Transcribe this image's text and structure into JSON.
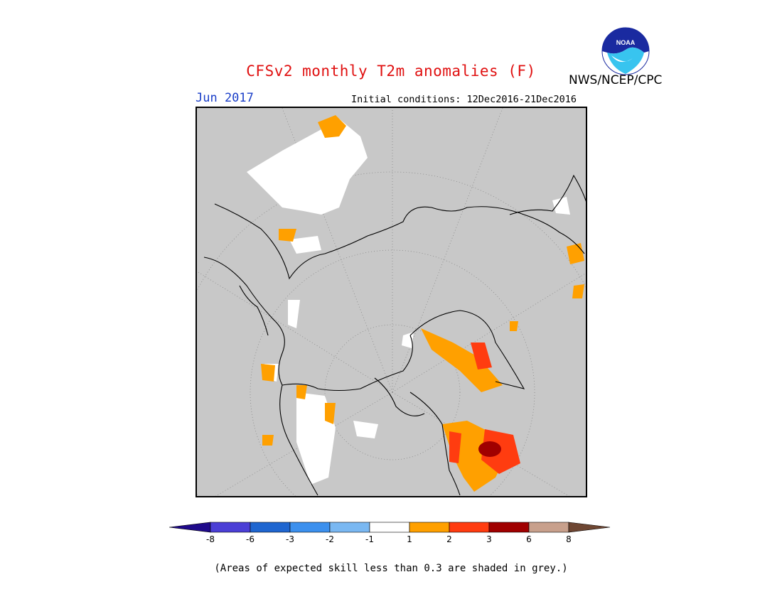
{
  "header": {
    "title": "CFSv2 monthly T2m anomalies (F)",
    "month": "Jun 2017",
    "initial_conditions": "Initial conditions: 12Dec2016-21Dec2016",
    "agency": "NWS/NCEP/CPC",
    "logo_text": "NOAA"
  },
  "colors": {
    "background_grey": "#c8c8c8",
    "title_red": "#e01010",
    "month_blue": "#1a3ec8"
  },
  "legend": {
    "bins": [
      {
        "color": "#1f0a8a"
      },
      {
        "color": "#4b3fd6"
      },
      {
        "color": "#1f66d0"
      },
      {
        "color": "#3c90ee"
      },
      {
        "color": "#7ab8f2"
      },
      {
        "color": "#ffffff"
      },
      {
        "color": "#ffa000"
      },
      {
        "color": "#ff3c10"
      },
      {
        "color": "#a00000"
      },
      {
        "color": "#c8a08c"
      },
      {
        "color": "#6e4632"
      }
    ],
    "tick_labels": [
      "-8",
      "-6",
      "-3",
      "-2",
      "-1",
      "1",
      "2",
      "3",
      "6",
      "8"
    ]
  },
  "footnote": "(Areas of expected skill less than 0.3 are shaded in grey.)"
}
